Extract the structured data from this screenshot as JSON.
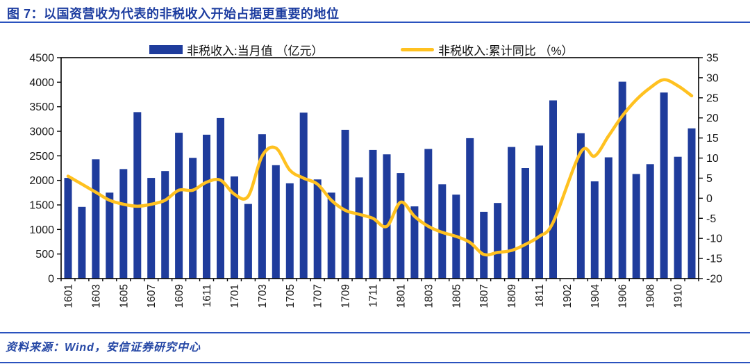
{
  "header": {
    "title": "图 7：以国资营收为代表的非税收入开始占据更重要的地位"
  },
  "footer": {
    "source_label": "资料来源：Wind，安信证券研究中心"
  },
  "colors": {
    "bar_navy": "#1f3c9c",
    "line_yellow": "#ffc120",
    "title_blue": "#1d3da0",
    "rule_blue": "#2a52be",
    "axis_black": "#000000",
    "tick_label": "#1a1a1a"
  },
  "chart_data": {
    "type": "bar",
    "subtype": "bar+line dual axis",
    "categories": [
      "1601",
      "1602",
      "1603",
      "1604",
      "1605",
      "1606",
      "1607",
      "1608",
      "1609",
      "1610",
      "1611",
      "1612",
      "1701",
      "1702",
      "1703",
      "1704",
      "1705",
      "1706",
      "1707",
      "1708",
      "1709",
      "1710",
      "1711",
      "1712",
      "1801",
      "1802",
      "1803",
      "1804",
      "1805",
      "1806",
      "1807",
      "1808",
      "1809",
      "1810",
      "1811",
      "1812",
      "1902",
      "1903",
      "1904",
      "1905",
      "1906",
      "1907",
      "1908",
      "1909",
      "1910",
      "1911"
    ],
    "x_tick_labels": [
      "1601",
      "1603",
      "1605",
      "1607",
      "1609",
      "1611",
      "1701",
      "1703",
      "1705",
      "1707",
      "1709",
      "1711",
      "1801",
      "1803",
      "1805",
      "1807",
      "1809",
      "1811",
      "1902",
      "1904",
      "1906",
      "1908",
      "1910"
    ],
    "series": [
      {
        "name": "非税收入:当月值 （亿元）",
        "type": "bar",
        "axis": "left",
        "color": "#1f3c9c",
        "values": [
          2050,
          1460,
          2430,
          1750,
          2230,
          3390,
          2050,
          2190,
          2970,
          2460,
          2930,
          3270,
          2080,
          1520,
          2940,
          2310,
          1940,
          3380,
          2020,
          1750,
          3030,
          2060,
          2620,
          2530,
          2150,
          1470,
          2640,
          1920,
          1710,
          2860,
          1360,
          1540,
          2680,
          2250,
          2710,
          3630,
          null,
          2960,
          1980,
          2470,
          4010,
          2130,
          2330,
          3790,
          2480,
          3060
        ]
      },
      {
        "name": "非税收入:累计同比 （%）",
        "type": "line",
        "axis": "right",
        "color": "#ffc120",
        "values": [
          5.5,
          3.5,
          1.5,
          -0.5,
          -1.5,
          -2,
          -1.5,
          -0.5,
          2,
          2,
          4,
          4.5,
          1,
          0.5,
          10.5,
          12.5,
          7,
          5,
          3.5,
          -0.5,
          -3,
          -4,
          -5,
          -7,
          -1,
          -4.5,
          -7,
          -8.5,
          -9.5,
          -11,
          -14,
          -13.5,
          -13,
          -11.5,
          -9.5,
          -6,
          null,
          11.5,
          10.5,
          15.5,
          20.5,
          24.5,
          27.5,
          29.5,
          28,
          25.5
        ]
      }
    ],
    "left_axis": {
      "min": 0,
      "max": 4500,
      "step": 500,
      "tick_labels": [
        "0",
        "500",
        "1000",
        "1500",
        "2000",
        "2500",
        "3000",
        "3500",
        "4000",
        "4500"
      ]
    },
    "right_axis": {
      "min": -20,
      "max": 35,
      "step": 5,
      "tick_labels": [
        "-20",
        "-15",
        "-10",
        "-5",
        "0",
        "5",
        "10",
        "15",
        "20",
        "25",
        "30",
        "35"
      ]
    },
    "grid": false,
    "legend_position": "top"
  }
}
